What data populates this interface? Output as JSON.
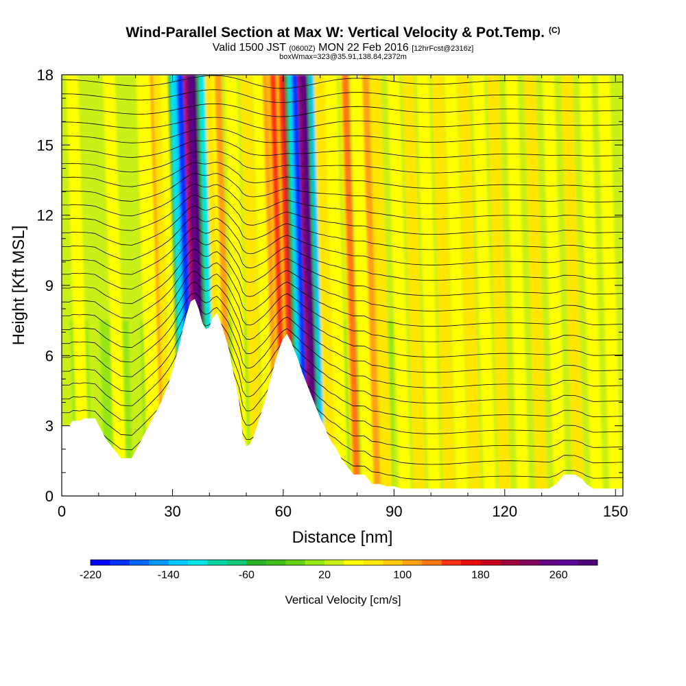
{
  "header": {
    "title": "Wind-Parallel Section at Max W: Vertical Velocity & Pot.Temp.",
    "copyright": "(C)",
    "valid_prefix": "Valid 1500 JST",
    "valid_utc": "(0600Z)",
    "valid_date": "MON 22 Feb 2016",
    "forecast": "[12hrFcst@2316z]",
    "box_info": "boxWmax=323@35.91,138.84,2372m"
  },
  "chart_data": {
    "type": "heatmap",
    "xlabel": "Distance [nm]",
    "ylabel": "Height [Kft MSL]",
    "xlim": [
      0,
      152
    ],
    "ylim": [
      0,
      18
    ],
    "x_ticks": [
      0,
      30,
      60,
      90,
      120,
      150
    ],
    "y_ticks": [
      0,
      3,
      6,
      9,
      12,
      15,
      18
    ],
    "grid": false,
    "colorbar": {
      "label": "Vertical Velocity [cm/s]",
      "placement": "bottom",
      "range": [
        -220,
        300
      ],
      "step": 20,
      "tick_labels": [
        -220,
        -140,
        -60,
        20,
        100,
        180,
        260
      ],
      "colors": [
        "#0000ff",
        "#0032ff",
        "#0064ff",
        "#0096ff",
        "#00c8ff",
        "#00e6e6",
        "#00d2a0",
        "#14c878",
        "#28b428",
        "#3cbe14",
        "#64d214",
        "#96e614",
        "#c8f014",
        "#ffff00",
        "#ffe600",
        "#ffc800",
        "#ffa014",
        "#ff7814",
        "#ff3214",
        "#eb0a0a",
        "#c8001e",
        "#a0003c",
        "#82005a",
        "#640082",
        "#5a0096",
        "#500078"
      ]
    },
    "terrain_kft": [
      [
        0,
        3.0
      ],
      [
        2,
        3.0
      ],
      [
        3,
        3.2
      ],
      [
        5,
        3.2
      ],
      [
        6,
        3.3
      ],
      [
        9,
        3.3
      ],
      [
        10,
        3.0
      ],
      [
        11,
        2.7
      ],
      [
        12,
        2.4
      ],
      [
        13,
        2.2
      ],
      [
        14,
        2.0
      ],
      [
        15,
        1.8
      ],
      [
        16,
        1.6
      ],
      [
        19,
        1.6
      ],
      [
        20,
        1.9
      ],
      [
        21,
        2.2
      ],
      [
        22,
        2.5
      ],
      [
        23,
        2.8
      ],
      [
        24,
        3.1
      ],
      [
        25,
        3.4
      ],
      [
        26,
        3.7
      ],
      [
        27,
        4.0
      ],
      [
        28,
        4.4
      ],
      [
        29,
        4.8
      ],
      [
        30,
        5.3
      ],
      [
        31,
        5.9
      ],
      [
        32,
        6.5
      ],
      [
        33,
        7.2
      ],
      [
        34,
        7.8
      ],
      [
        35,
        8.3
      ],
      [
        36,
        8.4
      ],
      [
        37,
        8.0
      ],
      [
        38,
        7.4
      ],
      [
        39,
        7.1
      ],
      [
        40,
        7.2
      ],
      [
        41,
        7.6
      ],
      [
        42,
        7.8
      ],
      [
        43,
        7.4
      ],
      [
        44,
        6.9
      ],
      [
        45,
        6.4
      ],
      [
        46,
        5.6
      ],
      [
        47,
        4.8
      ],
      [
        48,
        4.0
      ],
      [
        48.5,
        3.2
      ],
      [
        49,
        2.5
      ],
      [
        50,
        2.1
      ],
      [
        51,
        2.2
      ],
      [
        52,
        2.5
      ],
      [
        53,
        3.0
      ],
      [
        54,
        3.5
      ],
      [
        55,
        4.0
      ],
      [
        56,
        4.6
      ],
      [
        57,
        5.2
      ],
      [
        58,
        5.8
      ],
      [
        59,
        6.3
      ],
      [
        60,
        6.7
      ],
      [
        61,
        6.9
      ],
      [
        62,
        6.6
      ],
      [
        63,
        6.2
      ],
      [
        64,
        5.8
      ],
      [
        65,
        5.3
      ],
      [
        66,
        4.9
      ],
      [
        67,
        4.5
      ],
      [
        68,
        4.1
      ],
      [
        69,
        3.7
      ],
      [
        70,
        3.3
      ],
      [
        71,
        3.0
      ],
      [
        72,
        2.6
      ],
      [
        73,
        2.3
      ],
      [
        74,
        2.1
      ],
      [
        75,
        1.8
      ],
      [
        76,
        1.5
      ],
      [
        77,
        1.3
      ],
      [
        78,
        1.1
      ],
      [
        79,
        0.9
      ],
      [
        80,
        0.9
      ],
      [
        82,
        0.9
      ],
      [
        83,
        0.7
      ],
      [
        84,
        0.5
      ],
      [
        86,
        0.5
      ],
      [
        88,
        0.4
      ],
      [
        90,
        0.4
      ],
      [
        92,
        0.3
      ],
      [
        132,
        0.3
      ],
      [
        134,
        0.5
      ],
      [
        136,
        0.9
      ],
      [
        139,
        0.9
      ],
      [
        141,
        0.7
      ],
      [
        142,
        0.5
      ],
      [
        144,
        0.3
      ],
      [
        152,
        0.3
      ]
    ],
    "columns": [
      {
        "x": 2,
        "w": 20
      },
      {
        "x": 6,
        "w": 40
      },
      {
        "x": 10,
        "w": 20
      },
      {
        "x": 16,
        "w": 40
      },
      {
        "x": 21,
        "w": 20
      },
      {
        "x": 25,
        "w": 40
      },
      {
        "x": 28,
        "w": 100
      },
      {
        "x": 29.5,
        "w": 60
      },
      {
        "x": 31.5,
        "w": 40
      },
      {
        "x": 33.5,
        "w": -120
      },
      {
        "x": 35.3,
        "w": -200
      },
      {
        "x": 37.8,
        "w": 240
      },
      {
        "x": 39.3,
        "w": 300
      },
      {
        "x": 41.3,
        "w": -120
      },
      {
        "x": 43.5,
        "w": 60
      },
      {
        "x": 45.5,
        "w": 100
      },
      {
        "x": 49,
        "w": 40
      },
      {
        "x": 53,
        "w": 60
      },
      {
        "x": 56.5,
        "w": 40
      },
      {
        "x": 58.5,
        "w": 100
      },
      {
        "x": 60.5,
        "w": 140
      },
      {
        "x": 62.8,
        "w": 140
      },
      {
        "x": 64,
        "w": 200
      },
      {
        "x": 65.3,
        "w": -120
      },
      {
        "x": 66.5,
        "w": -200
      },
      {
        "x": 68.7,
        "w": 260
      },
      {
        "x": 69.8,
        "w": 300
      },
      {
        "x": 71.3,
        "w": -140
      },
      {
        "x": 73,
        "w": 60
      },
      {
        "x": 76,
        "w": 40
      },
      {
        "x": 80,
        "w": 120
      },
      {
        "x": 83,
        "w": 40
      },
      {
        "x": 85.5,
        "w": 100
      },
      {
        "x": 88,
        "w": 60
      },
      {
        "x": 93,
        "w": 40
      },
      {
        "x": 97,
        "w": 60
      },
      {
        "x": 101,
        "w": 40
      },
      {
        "x": 105,
        "w": 60
      },
      {
        "x": 108.5,
        "w": 40
      },
      {
        "x": 112,
        "w": 60
      },
      {
        "x": 116,
        "w": 40
      },
      {
        "x": 120,
        "w": 60
      },
      {
        "x": 125,
        "w": 40
      },
      {
        "x": 130,
        "w": 60
      },
      {
        "x": 135,
        "w": 40
      },
      {
        "x": 140,
        "w": 60
      },
      {
        "x": 145,
        "w": 40
      },
      {
        "x": 150,
        "w": 40
      }
    ],
    "low_level_zone": {
      "x": [
        0,
        90
      ],
      "below_kft": 7.5,
      "w": 0
    },
    "theta_contours": {
      "count": 30
    }
  }
}
